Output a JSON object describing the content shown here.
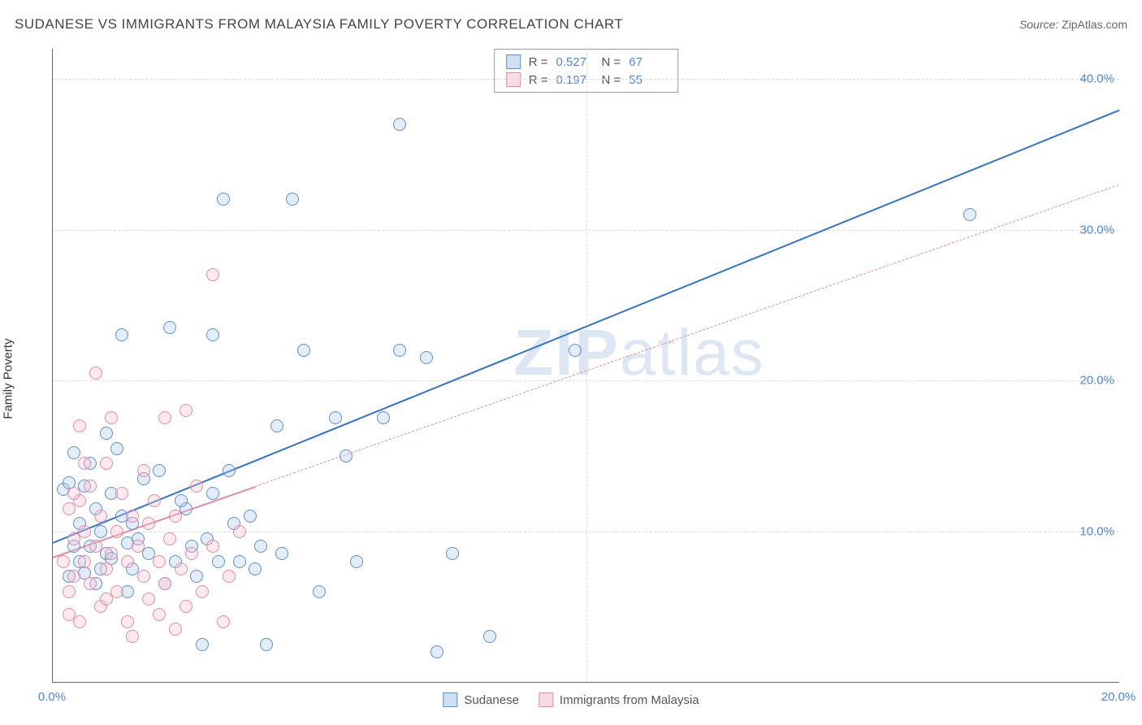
{
  "header": {
    "title": "SUDANESE VS IMMIGRANTS FROM MALAYSIA FAMILY POVERTY CORRELATION CHART",
    "source_label": "Source:",
    "source_value": "ZipAtlas.com"
  },
  "ylabel": "Family Poverty",
  "watermark": {
    "zip": "ZIP",
    "atlas": "atlas"
  },
  "chart": {
    "type": "scatter",
    "xlim": [
      0,
      20
    ],
    "ylim": [
      0,
      42
    ],
    "x_ticks": [
      0,
      20
    ],
    "x_tick_labels": [
      "0.0%",
      "20.0%"
    ],
    "y_ticks": [
      10,
      20,
      30,
      40
    ],
    "y_tick_labels": [
      "10.0%",
      "20.0%",
      "30.0%",
      "40.0%"
    ],
    "x_grid": [
      10
    ],
    "background_color": "#ffffff",
    "grid_color": "#dddddd",
    "axis_color": "#666666",
    "tick_label_color": "#4a86e8",
    "tick_fontsize": 15,
    "point_radius": 8,
    "point_border_width": 1.5,
    "point_fill_opacity": 0.35,
    "series": [
      {
        "id": "sudanese",
        "label": "Sudanese",
        "fill": "#aecbec",
        "stroke": "#5b8fd6",
        "R": "0.527",
        "N": "67",
        "regression": {
          "x1": 0,
          "y1": 9.3,
          "x2": 20,
          "y2": 38.0,
          "width": 2.5,
          "dashed": false,
          "color": "#2f72d8",
          "extend_to_xmax": true,
          "solid_until_x": 20
        },
        "points": [
          [
            0.2,
            12.8
          ],
          [
            0.3,
            7.0
          ],
          [
            0.4,
            15.2
          ],
          [
            0.5,
            10.5
          ],
          [
            0.5,
            8.0
          ],
          [
            0.6,
            13.0
          ],
          [
            0.7,
            9.0
          ],
          [
            0.7,
            14.5
          ],
          [
            0.8,
            6.5
          ],
          [
            0.8,
            11.5
          ],
          [
            0.9,
            7.5
          ],
          [
            1.0,
            16.5
          ],
          [
            1.0,
            8.5
          ],
          [
            1.1,
            12.5
          ],
          [
            1.2,
            15.5
          ],
          [
            1.3,
            23.0
          ],
          [
            1.4,
            6.0
          ],
          [
            1.5,
            10.5
          ],
          [
            1.5,
            7.5
          ],
          [
            1.6,
            9.5
          ],
          [
            1.7,
            13.5
          ],
          [
            2.0,
            14.0
          ],
          [
            2.2,
            23.5
          ],
          [
            2.3,
            8.0
          ],
          [
            2.5,
            11.5
          ],
          [
            2.6,
            9.0
          ],
          [
            2.7,
            7.0
          ],
          [
            2.8,
            2.5
          ],
          [
            3.0,
            23.0
          ],
          [
            3.0,
            12.5
          ],
          [
            3.1,
            8.0
          ],
          [
            3.2,
            32.0
          ],
          [
            3.3,
            14.0
          ],
          [
            3.5,
            8.0
          ],
          [
            3.7,
            11.0
          ],
          [
            3.8,
            7.5
          ],
          [
            4.0,
            2.5
          ],
          [
            4.2,
            17.0
          ],
          [
            4.3,
            8.5
          ],
          [
            4.5,
            32.0
          ],
          [
            4.7,
            22.0
          ],
          [
            5.0,
            6.0
          ],
          [
            5.3,
            17.5
          ],
          [
            5.5,
            15.0
          ],
          [
            5.7,
            8.0
          ],
          [
            6.2,
            17.5
          ],
          [
            6.5,
            37.0
          ],
          [
            6.5,
            22.0
          ],
          [
            7.0,
            21.5
          ],
          [
            7.2,
            2.0
          ],
          [
            7.5,
            8.5
          ],
          [
            8.2,
            3.0
          ],
          [
            9.8,
            22.0
          ],
          [
            17.2,
            31.0
          ],
          [
            0.3,
            13.2
          ],
          [
            0.4,
            9.0
          ],
          [
            0.6,
            7.2
          ],
          [
            0.9,
            10.0
          ],
          [
            1.1,
            8.2
          ],
          [
            1.3,
            11.0
          ],
          [
            1.4,
            9.2
          ],
          [
            1.8,
            8.5
          ],
          [
            2.1,
            6.5
          ],
          [
            2.4,
            12.0
          ],
          [
            2.9,
            9.5
          ],
          [
            3.4,
            10.5
          ],
          [
            3.9,
            9.0
          ]
        ]
      },
      {
        "id": "malaysia",
        "label": "Immigrants from Malaysia",
        "fill": "#f6c3cf",
        "stroke": "#e68aa0",
        "R": "0.197",
        "N": "55",
        "regression": {
          "x1": 0,
          "y1": 8.3,
          "x2": 20,
          "y2": 33.0,
          "width": 2,
          "dashed": true,
          "color": "#e68aa0",
          "extend_to_xmax": true,
          "solid_until_x": 3.8
        },
        "points": [
          [
            0.2,
            8.0
          ],
          [
            0.3,
            11.5
          ],
          [
            0.3,
            6.0
          ],
          [
            0.4,
            9.5
          ],
          [
            0.4,
            7.0
          ],
          [
            0.5,
            12.0
          ],
          [
            0.5,
            4.0
          ],
          [
            0.6,
            10.0
          ],
          [
            0.6,
            8.0
          ],
          [
            0.7,
            6.5
          ],
          [
            0.7,
            13.0
          ],
          [
            0.8,
            20.5
          ],
          [
            0.8,
            9.0
          ],
          [
            0.9,
            11.0
          ],
          [
            0.9,
            5.0
          ],
          [
            1.0,
            14.5
          ],
          [
            1.0,
            7.5
          ],
          [
            1.1,
            17.5
          ],
          [
            1.1,
            8.5
          ],
          [
            1.2,
            6.0
          ],
          [
            1.2,
            10.0
          ],
          [
            1.3,
            12.5
          ],
          [
            1.4,
            4.0
          ],
          [
            1.4,
            8.0
          ],
          [
            1.5,
            11.0
          ],
          [
            1.5,
            3.0
          ],
          [
            1.6,
            9.0
          ],
          [
            1.7,
            7.0
          ],
          [
            1.7,
            14.0
          ],
          [
            1.8,
            5.5
          ],
          [
            1.8,
            10.5
          ],
          [
            1.9,
            12.0
          ],
          [
            2.0,
            8.0
          ],
          [
            2.0,
            4.5
          ],
          [
            2.1,
            17.5
          ],
          [
            2.1,
            6.5
          ],
          [
            2.2,
            9.5
          ],
          [
            2.3,
            11.0
          ],
          [
            2.3,
            3.5
          ],
          [
            2.4,
            7.5
          ],
          [
            2.5,
            18.0
          ],
          [
            2.5,
            5.0
          ],
          [
            2.6,
            8.5
          ],
          [
            2.7,
            13.0
          ],
          [
            2.8,
            6.0
          ],
          [
            3.0,
            27.0
          ],
          [
            3.0,
            9.0
          ],
          [
            3.2,
            4.0
          ],
          [
            3.3,
            7.0
          ],
          [
            3.5,
            10.0
          ],
          [
            0.5,
            17.0
          ],
          [
            0.6,
            14.5
          ],
          [
            0.3,
            4.5
          ],
          [
            0.4,
            12.5
          ],
          [
            1.0,
            5.5
          ]
        ]
      }
    ]
  },
  "stat_legend": {
    "R_label": "R =",
    "N_label": "N ="
  }
}
